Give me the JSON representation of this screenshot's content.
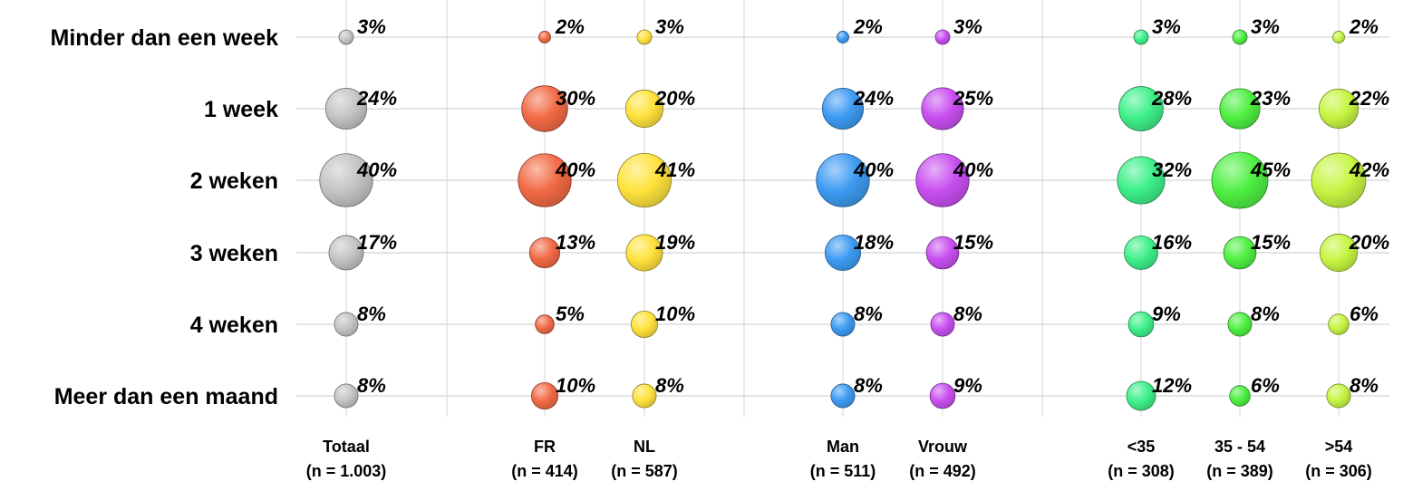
{
  "chart_data": {
    "type": "bubble",
    "rows": [
      "Minder dan een week",
      "1 week",
      "2 weken",
      "3 weken",
      "4 weken",
      "Meer dan een maand"
    ],
    "columns": [
      {
        "name": "Totaal",
        "n": "(n = 1.003)",
        "color": "#c4c4c4",
        "values": [
          3,
          24,
          40,
          17,
          8,
          8
        ]
      },
      {
        "name": "FR",
        "n": "(n = 414)",
        "color": "#f26a45",
        "values": [
          2,
          30,
          40,
          13,
          5,
          10
        ]
      },
      {
        "name": "NL",
        "n": "(n = 587)",
        "color": "#ffe23c",
        "values": [
          3,
          20,
          41,
          19,
          10,
          8
        ]
      },
      {
        "name": "Man",
        "n": "(n = 511)",
        "color": "#3d9bf2",
        "values": [
          2,
          24,
          40,
          18,
          8,
          8
        ]
      },
      {
        "name": "Vrouw",
        "n": "(n = 492)",
        "color": "#c84ff0",
        "values": [
          3,
          25,
          40,
          15,
          8,
          9
        ]
      },
      {
        "name": "<35",
        "n": "(n = 308)",
        "color": "#3ef08a",
        "values": [
          3,
          28,
          32,
          16,
          9,
          12
        ]
      },
      {
        "name": "35 - 54",
        "n": "(n = 389)",
        "color": "#4ef042",
        "values": [
          3,
          23,
          45,
          15,
          8,
          6
        ]
      },
      {
        "name": ">54",
        "n": "(n = 306)",
        "color": "#c6f542",
        "values": [
          2,
          22,
          42,
          20,
          6,
          8
        ]
      }
    ],
    "value_suffix": "%",
    "grid": true
  }
}
